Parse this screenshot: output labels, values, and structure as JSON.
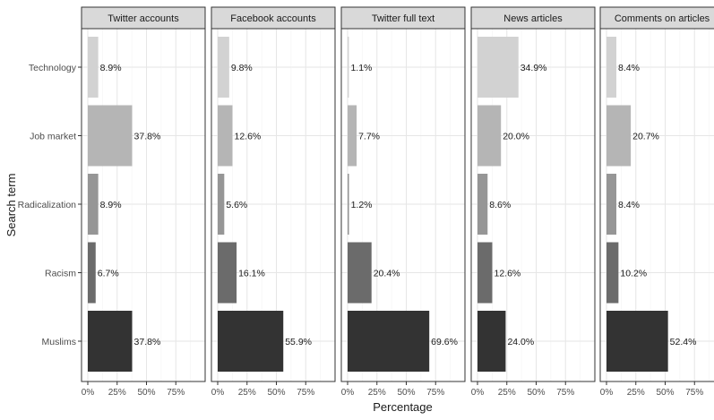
{
  "chart_data": {
    "type": "bar",
    "orientation": "horizontal",
    "xlabel": "Percentage",
    "ylabel": "Search term",
    "xlim": [
      0,
      100
    ],
    "x_ticks": [
      0,
      25,
      50,
      75
    ],
    "x_tick_labels": [
      "0%",
      "25%",
      "50%",
      "75%"
    ],
    "grid": true,
    "categories": [
      "Technology",
      "Job market",
      "Radicalization",
      "Racism",
      "Muslims"
    ],
    "bar_colors": [
      "#d2d2d2",
      "#b5b5b5",
      "#969696",
      "#6b6b6b",
      "#333333"
    ],
    "panels": [
      {
        "title": "Twitter accounts",
        "values": [
          8.9,
          37.8,
          8.9,
          6.7,
          37.8
        ],
        "labels": [
          "8.9%",
          "37.8%",
          "8.9%",
          "6.7%",
          "37.8%"
        ]
      },
      {
        "title": "Facebook accounts",
        "values": [
          9.8,
          12.6,
          5.6,
          16.1,
          55.9
        ],
        "labels": [
          "9.8%",
          "12.6%",
          "5.6%",
          "16.1%",
          "55.9%"
        ]
      },
      {
        "title": "Twitter full text",
        "values": [
          1.1,
          7.7,
          1.2,
          20.4,
          69.6
        ],
        "labels": [
          "1.1%",
          "7.7%",
          "1.2%",
          "20.4%",
          "69.6%"
        ]
      },
      {
        "title": "News articles",
        "values": [
          34.9,
          20.0,
          8.6,
          12.6,
          24.0
        ],
        "labels": [
          "34.9%",
          "20.0%",
          "8.6%",
          "12.6%",
          "24.0%"
        ]
      },
      {
        "title": "Comments on articles",
        "values": [
          8.4,
          20.7,
          8.4,
          10.2,
          52.4
        ],
        "labels": [
          "8.4%",
          "20.7%",
          "8.4%",
          "10.2%",
          "52.4%"
        ]
      }
    ]
  }
}
